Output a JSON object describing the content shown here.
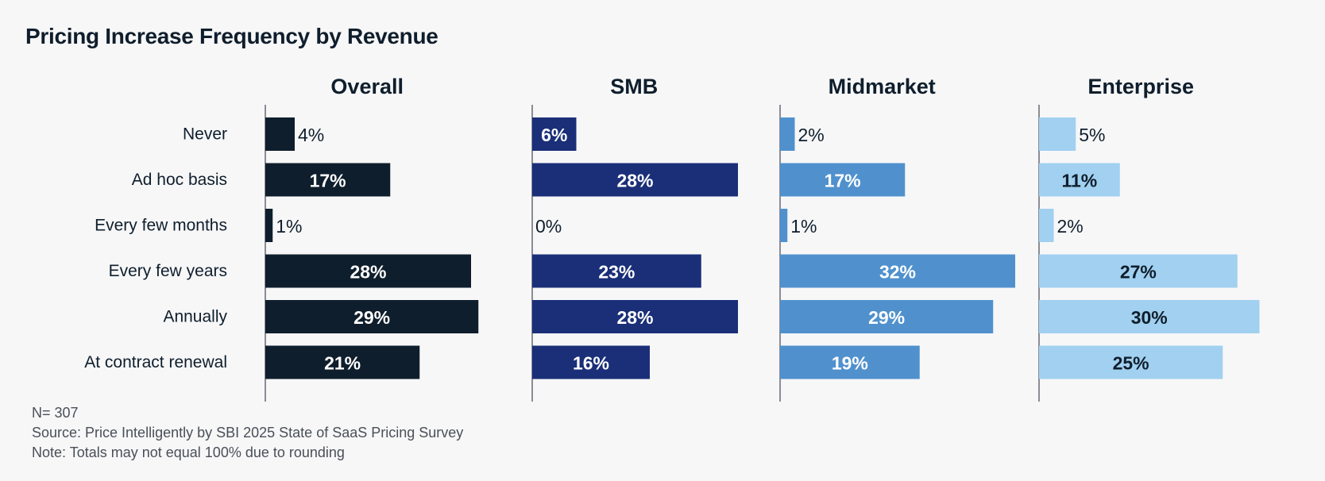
{
  "chart_data": {
    "type": "bar",
    "orientation": "horizontal",
    "title": "Pricing Increase Frequency by Revenue",
    "categories": [
      "Never",
      "Ad hoc basis",
      "Every few months",
      "Every few years",
      "Annually",
      "At contract renewal"
    ],
    "series": [
      {
        "name": "Overall",
        "values": [
          4,
          17,
          1,
          28,
          29,
          21
        ],
        "labels": [
          "4%",
          "17%",
          "1%",
          "28%",
          "29%",
          "21%"
        ],
        "color": "#0f1e2c",
        "text_color": "#ffffff"
      },
      {
        "name": "SMB",
        "values": [
          6,
          28,
          0,
          23,
          28,
          16
        ],
        "labels": [
          "6%",
          "28%",
          "0%",
          "23%",
          "28%",
          "16%"
        ],
        "color": "#1a2f78",
        "text_color": "#ffffff"
      },
      {
        "name": "Midmarket",
        "values": [
          2,
          17,
          1,
          32,
          29,
          19
        ],
        "labels": [
          "2%",
          "17%",
          "1%",
          "32%",
          "29%",
          "19%"
        ],
        "color": "#5091cd",
        "text_color": "#ffffff"
      },
      {
        "name": "Enterprise",
        "values": [
          5,
          11,
          2,
          27,
          30,
          25
        ],
        "labels": [
          "5%",
          "11%",
          "2%",
          "27%",
          "30%",
          "25%"
        ],
        "color": "#a1d0f0",
        "text_color": "#0f1e2c"
      }
    ],
    "xlim": [
      0,
      33
    ],
    "xlabel": "",
    "ylabel": "",
    "grid": false,
    "legend": "none"
  },
  "footnotes": {
    "n": "N= 307",
    "source": "Source: Price Intelligently by SBI 2025 State of SaaS Pricing Survey",
    "note": "Note: Totals may not equal 100% due to rounding"
  }
}
